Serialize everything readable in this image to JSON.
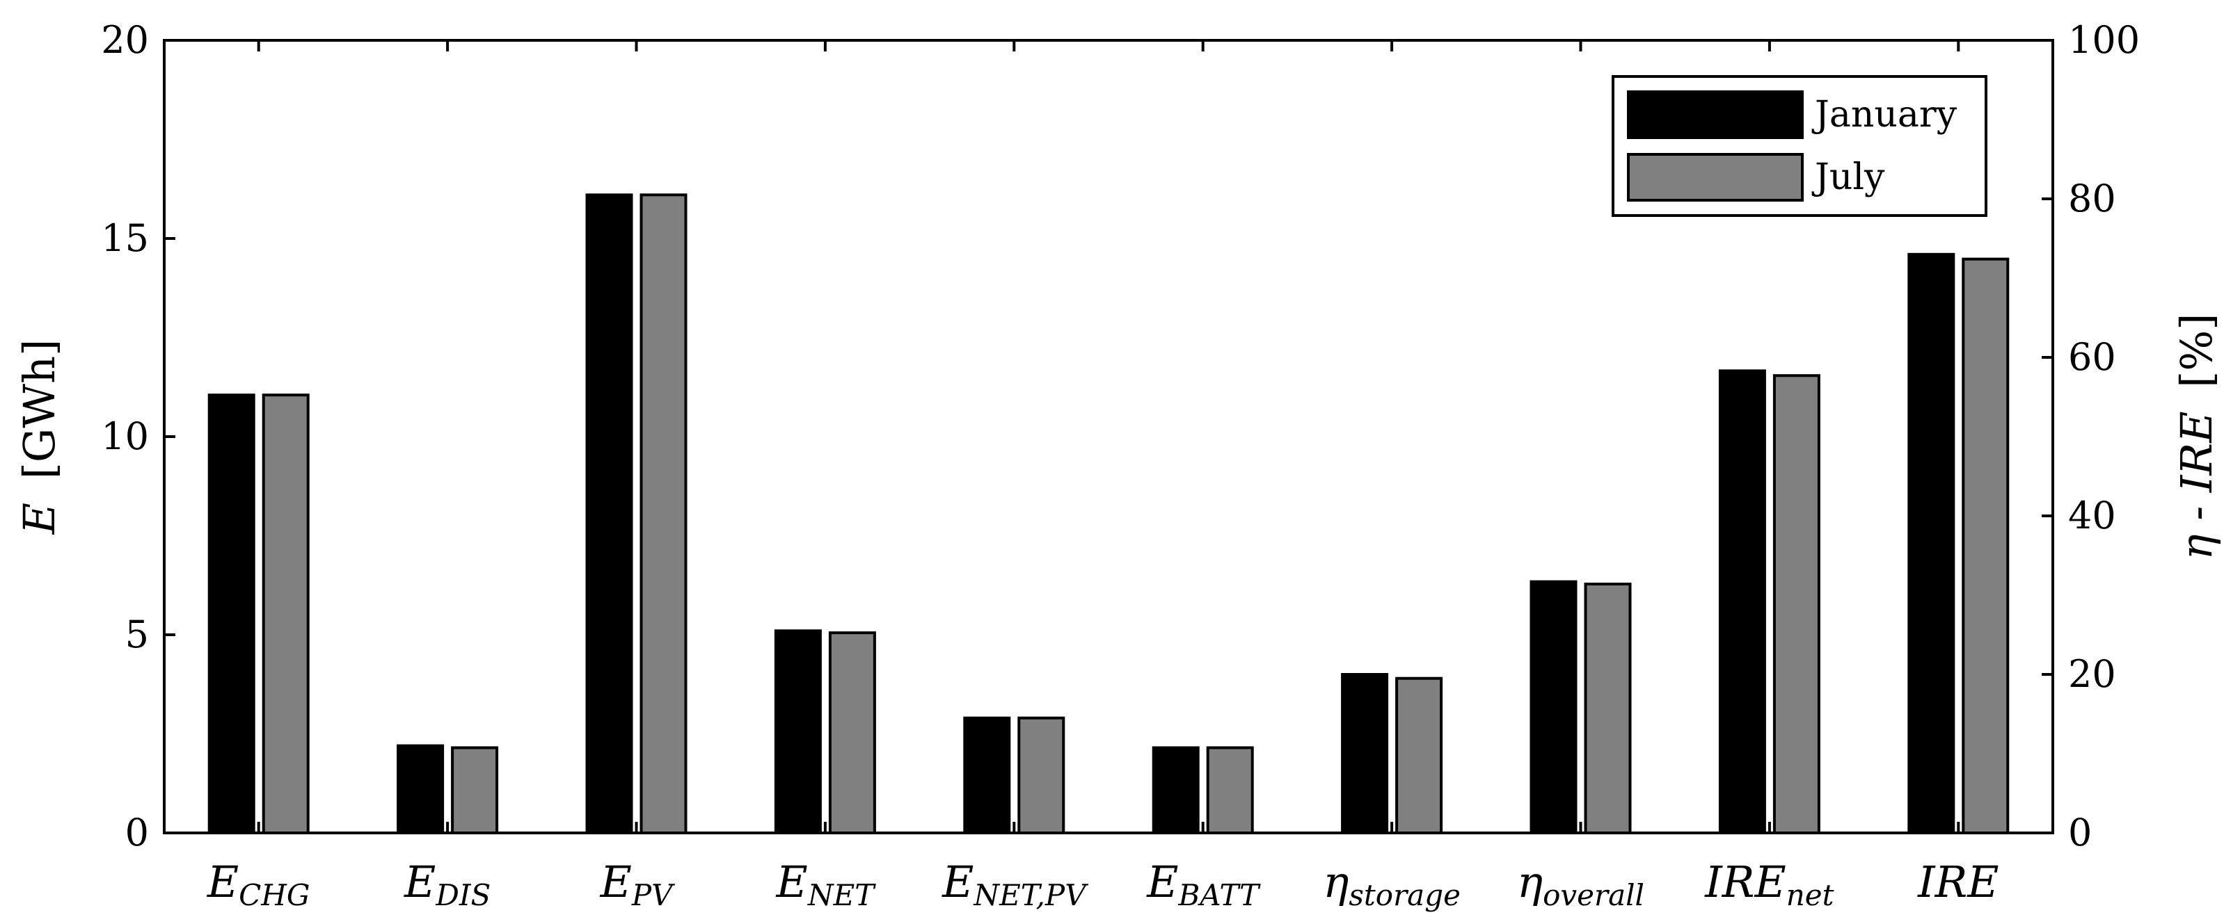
{
  "chart_data": {
    "type": "bar",
    "categories": [
      {
        "main": "E",
        "sub": "CHG"
      },
      {
        "main": "E",
        "sub": "DIS"
      },
      {
        "main": "E",
        "sub": "PV"
      },
      {
        "main": "E",
        "sub": "NET"
      },
      {
        "main": "E",
        "sub": "NET,PV"
      },
      {
        "main": "E",
        "sub": "BATT"
      },
      {
        "main": "η",
        "sub": "storage"
      },
      {
        "main": "η",
        "sub": "overall"
      },
      {
        "main": "IRE",
        "sub": "net"
      },
      {
        "main": "IRE",
        "sub": ""
      }
    ],
    "series": [
      {
        "name": "January",
        "color": "#000000",
        "values": [
          11.05,
          2.2,
          16.1,
          5.1,
          2.9,
          2.15,
          20.0,
          31.7,
          58.3,
          73.0
        ]
      },
      {
        "name": "July",
        "color": "#808080",
        "values": [
          11.05,
          2.15,
          16.1,
          5.05,
          2.9,
          2.15,
          19.5,
          31.4,
          57.7,
          72.4
        ]
      }
    ],
    "axis_for_category": [
      "left",
      "left",
      "left",
      "left",
      "left",
      "left",
      "right",
      "right",
      "right",
      "right"
    ],
    "ylabel_left": {
      "main": "E",
      "unit": "[GWh]"
    },
    "ylabel_right": {
      "main": "η - IRE",
      "unit": "[%]"
    },
    "ylim_left": [
      0,
      20
    ],
    "ylim_right": [
      0,
      100
    ],
    "yticks_left": [
      "0",
      "5",
      "10",
      "15",
      "20"
    ],
    "yticks_right": [
      "0",
      "20",
      "40",
      "60",
      "80",
      "100"
    ],
    "legend_position": "top-right",
    "grid": false
  }
}
